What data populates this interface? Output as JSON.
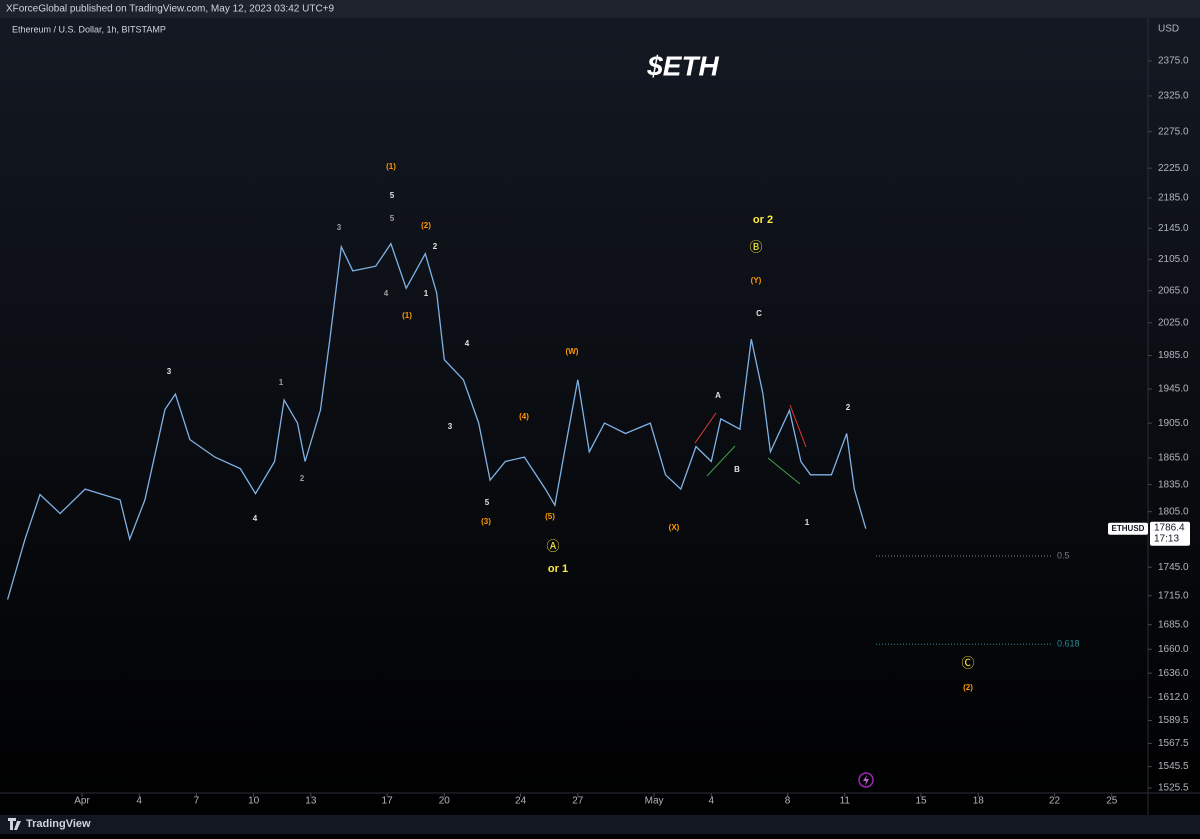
{
  "header": {
    "published": "XForceGlobal published on TradingView.com, May 12, 2023 03:42 UTC+9"
  },
  "chart_data": {
    "type": "line",
    "title": "$ETH",
    "symbol": "Ethereum / U.S. Dollar, 1h, BITSTAMP",
    "currency": "USD",
    "log_scale": true,
    "grid": false,
    "x": [
      -3.9,
      -2.99,
      -2.2,
      -1.15,
      0.16,
      2.0,
      2.5,
      3.3,
      4.35,
      4.9,
      5.66,
      6.97,
      8.3,
      9.1,
      10.1,
      10.6,
      11.3,
      11.7,
      12.5,
      13.0,
      13.6,
      14.2,
      15.4,
      16.2,
      17.0,
      18.0,
      18.6,
      19.0,
      20.0,
      20.8,
      21.4,
      22.2,
      23.2,
      24.3,
      24.8,
      25.3,
      26.0,
      26.6,
      27.4,
      28.5,
      29.8,
      30.6,
      31.4,
      32.2,
      33.0,
      33.5,
      34.5,
      35.1,
      35.7,
      36.1,
      37.1,
      37.7,
      38.2,
      39.3,
      40.1,
      40.5,
      41.1
    ],
    "series": [
      {
        "name": "ETHUSD",
        "color": "#7fb2e5",
        "values": [
          1711,
          1775,
          1824,
          1803,
          1830,
          1818,
          1775,
          1818,
          1921,
          1939,
          1886,
          1866,
          1853,
          1825,
          1861,
          1932,
          1905,
          1861,
          1920,
          2005,
          2121,
          2090,
          2096,
          2125,
          2068,
          2112,
          2062,
          1980,
          1956,
          1905,
          1840,
          1861,
          1866,
          1830,
          1812,
          1872,
          1956,
          1872,
          1905,
          1893,
          1905,
          1846,
          1830,
          1878,
          1861,
          1910,
          1898,
          2005,
          1940,
          1872,
          1920,
          1861,
          1846,
          1846,
          1893,
          1830,
          1786.4
        ]
      }
    ],
    "countdown": "17:13",
    "xlim": [
      -4.3,
      55.9
    ],
    "xticks": [
      {
        "value": 0,
        "label": "Apr"
      },
      {
        "value": 3,
        "label": "4"
      },
      {
        "value": 6,
        "label": "7"
      },
      {
        "value": 9,
        "label": "10"
      },
      {
        "value": 12,
        "label": "13"
      },
      {
        "value": 16,
        "label": "17"
      },
      {
        "value": 19,
        "label": "20"
      },
      {
        "value": 23,
        "label": "24"
      },
      {
        "value": 26,
        "label": "27"
      },
      {
        "value": 30,
        "label": "May"
      },
      {
        "value": 33,
        "label": "4"
      },
      {
        "value": 37,
        "label": "8"
      },
      {
        "value": 40,
        "label": "11"
      },
      {
        "value": 44,
        "label": "15"
      },
      {
        "value": 47,
        "label": "18"
      },
      {
        "value": 51,
        "label": "22"
      },
      {
        "value": 54,
        "label": "25"
      }
    ],
    "ylim": [
      1519,
      2438
    ],
    "yticks": [
      {
        "value": 2375,
        "label": "2375.0"
      },
      {
        "value": 2325,
        "label": "2325.0"
      },
      {
        "value": 2275,
        "label": "2275.0"
      },
      {
        "value": 2225,
        "label": "2225.0"
      },
      {
        "value": 2185,
        "label": "2185.0"
      },
      {
        "value": 2145,
        "label": "2145.0"
      },
      {
        "value": 2105,
        "label": "2105.0"
      },
      {
        "value": 2065,
        "label": "2065.0"
      },
      {
        "value": 2025,
        "label": "2025.0"
      },
      {
        "value": 1985,
        "label": "1985.0"
      },
      {
        "value": 1945,
        "label": "1945.0"
      },
      {
        "value": 1905,
        "label": "1905.0"
      },
      {
        "value": 1865,
        "label": "1865.0"
      },
      {
        "value": 1835,
        "label": "1835.0"
      },
      {
        "value": 1805,
        "label": "1805.0"
      },
      {
        "value": 1745,
        "label": "1745.0"
      },
      {
        "value": 1715,
        "label": "1715.0"
      },
      {
        "value": 1685,
        "label": "1685.0"
      },
      {
        "value": 1660,
        "label": "1660.0"
      },
      {
        "value": 1636,
        "label": "1636.0"
      },
      {
        "value": 1612,
        "label": "1612.0"
      },
      1589.5,
      1567.5,
      1545.5,
      1525.5
    ],
    "levels": [
      {
        "label": "0.5",
        "value": 1757,
        "color": "#787b86"
      },
      {
        "label": "0.618",
        "value": 1665,
        "color": "#2a8a9a"
      }
    ],
    "annotations": [
      {
        "text": "(1)",
        "color": "#ff9800"
      },
      {
        "text": "5",
        "color": "#e0e0e0"
      },
      {
        "text": "5",
        "color": "#9e9e9e"
      },
      {
        "text": "(2)",
        "color": "#ff9800"
      },
      {
        "text": "2",
        "color": "#e0e0e0"
      },
      {
        "text": "3",
        "color": "#9e9e9e"
      },
      {
        "text": "4",
        "color": "#9e9e9e"
      },
      {
        "text": "1",
        "color": "#e0e0e0"
      },
      {
        "text": "(1)",
        "color": "#ff9800"
      },
      {
        "text": "3",
        "color": "#e0e0e0"
      },
      {
        "text": "1",
        "color": "#9e9e9e"
      },
      {
        "text": "2",
        "color": "#9e9e9e"
      },
      {
        "text": "4",
        "color": "#e0e0e0"
      },
      {
        "text": "4",
        "color": "#e0e0e0"
      },
      {
        "text": "3",
        "color": "#e0e0e0"
      },
      {
        "text": "5",
        "color": "#e0e0e0"
      },
      {
        "text": "(3)",
        "color": "#ff9800"
      },
      {
        "text": "(4)",
        "color": "#ff9800"
      },
      {
        "text": "(5)",
        "color": "#ff9800"
      },
      {
        "text": "Ⓐ",
        "color": "#ffeb3b"
      },
      {
        "text": "or 1",
        "color": "#ffeb3b"
      },
      {
        "text": "(W)",
        "color": "#ff9800"
      },
      {
        "text": "(X)",
        "color": "#ff9800"
      },
      {
        "text": "A",
        "color": "#e0e0e0"
      },
      {
        "text": "B",
        "color": "#e0e0e0"
      },
      {
        "text": "C",
        "color": "#e0e0e0"
      },
      {
        "text": "(Y)",
        "color": "#ff9800"
      },
      {
        "text": "Ⓑ",
        "color": "#ffeb3b"
      },
      {
        "text": "or 2",
        "color": "#ffeb3b"
      },
      {
        "text": "2",
        "color": "#e0e0e0"
      },
      {
        "text": "1",
        "color": "#e0e0e0"
      },
      {
        "text": "Ⓒ",
        "color": "#ffeb3b"
      },
      {
        "text": "(2)",
        "color": "#ff9800"
      }
    ]
  },
  "footer": {
    "brand": "TradingView"
  }
}
